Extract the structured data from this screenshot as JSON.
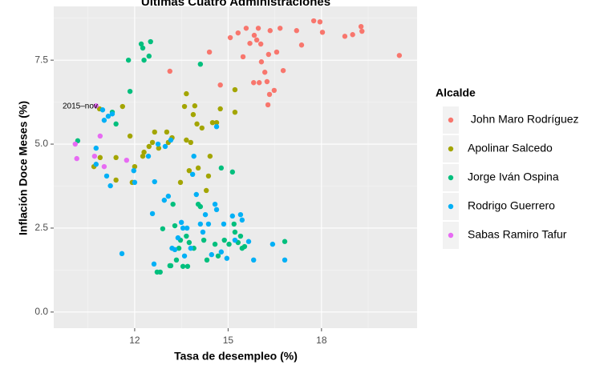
{
  "chart_data": {
    "type": "scatter",
    "title": "Últimas Cuatro Administraciones",
    "x_label": "Tasa de desempleo (%)",
    "y_label": "Inflación Doce Meses (%)",
    "annotation": "2015–nov",
    "legend_title": "Alcalde",
    "legend_position": "right",
    "grid": true,
    "xlim": [
      9.4,
      21.07
    ],
    "ylim": [
      -0.48,
      9.1
    ],
    "xticks": [
      12,
      15,
      18
    ],
    "yticks": [
      {
        "value": 0,
        "label": "0.0"
      },
      {
        "value": 2.5,
        "label": "2.5"
      },
      {
        "value": 5,
        "label": "5.0"
      },
      {
        "value": 7.5,
        "label": "7.5"
      }
    ],
    "series": [
      {
        "name": " John Maro Rodríguez",
        "color": "#F8766D",
        "x": [
          13.13,
          14.4,
          14.75,
          15.07,
          15.32,
          15.58,
          15.48,
          15.7,
          15.84,
          15.92,
          15.97,
          16.05,
          15.82,
          16.0,
          16.07,
          16.18,
          16.25,
          16.28,
          16.33,
          16.3,
          16.35,
          16.48,
          16.56,
          16.67,
          16.77,
          17.2,
          17.36,
          17.75,
          17.95,
          18.03,
          18.75,
          19.0,
          19.27,
          19.3,
          20.5
        ],
        "values": [
          7.17,
          7.74,
          6.76,
          8.17,
          8.31,
          8.45,
          7.6,
          8.0,
          8.24,
          8.1,
          8.45,
          7.98,
          6.83,
          6.83,
          7.45,
          7.14,
          6.86,
          6.17,
          6.48,
          7.67,
          8.38,
          6.6,
          7.74,
          8.45,
          7.19,
          8.38,
          7.95,
          8.67,
          8.64,
          8.33,
          8.21,
          8.26,
          8.5,
          8.36,
          7.64
        ]
      },
      {
        "name": "Apolinar Salcedo",
        "color": "#A3A500",
        "x": [
          10.69,
          10.89,
          10.87,
          11.4,
          11.61,
          11.85,
          11.92,
          12.0,
          12.26,
          12.3,
          12.46,
          12.57,
          12.64,
          12.77,
          13.03,
          13.08,
          13.2,
          13.47,
          13.6,
          13.66,
          13.66,
          13.75,
          13.8,
          13.88,
          13.93,
          14.0,
          14.04,
          14.16,
          14.3,
          14.37,
          14.42,
          14.5,
          14.63,
          14.75,
          15.22,
          15.22,
          11.4
        ],
        "values": [
          4.33,
          4.6,
          6.05,
          4.6,
          6.12,
          5.24,
          3.86,
          4.33,
          4.64,
          4.76,
          4.93,
          5.05,
          5.36,
          4.88,
          5.36,
          5.05,
          5.19,
          3.86,
          6.12,
          6.5,
          5.12,
          4.21,
          5.05,
          5.88,
          6.14,
          5.6,
          4.29,
          5.48,
          3.62,
          4.05,
          4.64,
          5.64,
          5.64,
          6.05,
          6.62,
          5.95,
          3.93
        ]
      },
      {
        "name": "Jorge Iván Ospina",
        "color": "#00BF7D",
        "x": [
          10.17,
          11.8,
          11.85,
          12.21,
          12.26,
          12.3,
          12.46,
          12.51,
          11.28,
          11.4,
          13.23,
          13.16,
          12.72,
          12.82,
          13.13,
          13.34,
          13.42,
          13.47,
          13.55,
          13.66,
          13.7,
          13.75,
          13.9,
          14.04,
          14.11,
          14.11,
          14.22,
          14.32,
          14.68,
          14.78,
          14.88,
          15.14,
          15.03,
          15.19,
          15.22,
          15.32,
          15.4,
          15.45,
          15.53,
          16.82,
          12.9,
          13.29,
          14.58
        ],
        "values": [
          5.1,
          7.5,
          6.57,
          7.98,
          7.86,
          7.5,
          7.62,
          8.05,
          5.95,
          5.6,
          3.21,
          1.38,
          1.19,
          1.19,
          1.38,
          1.55,
          1.9,
          2.14,
          1.36,
          2.26,
          1.36,
          2.07,
          1.9,
          3.21,
          3.14,
          7.38,
          2.14,
          1.55,
          1.67,
          4.29,
          2.14,
          4.17,
          2.02,
          2.62,
          2.38,
          2.07,
          2.26,
          1.9,
          1.95,
          2.1,
          2.48,
          2.57,
          2.02
        ]
      },
      {
        "name": "Rodrigo Guerrero",
        "color": "#00B0F6",
        "x": [
          10.76,
          10.76,
          10.97,
          11.02,
          11.1,
          11.15,
          11.22,
          11.28,
          11.59,
          11.97,
          12.0,
          12.44,
          12.57,
          12.62,
          12.64,
          12.75,
          12.95,
          12.98,
          13.08,
          13.16,
          13.2,
          13.29,
          13.39,
          13.5,
          13.55,
          13.6,
          13.68,
          13.8,
          13.86,
          13.9,
          13.98,
          14.11,
          14.19,
          14.27,
          14.37,
          14.47,
          14.58,
          14.63,
          14.78,
          14.86,
          14.96,
          15.14,
          15.22,
          15.4,
          15.45,
          15.66,
          15.82,
          16.43,
          16.82,
          14.63
        ],
        "values": [
          4.88,
          4.4,
          6.02,
          5.71,
          4.05,
          5.83,
          3.76,
          5.9,
          1.74,
          4.21,
          3.86,
          4.64,
          2.93,
          1.43,
          3.88,
          5.0,
          3.33,
          4.93,
          3.45,
          5.12,
          1.9,
          1.86,
          2.21,
          2.67,
          2.5,
          1.67,
          2.5,
          1.9,
          4.1,
          4.64,
          3.5,
          2.62,
          2.38,
          2.9,
          2.62,
          1.71,
          3.21,
          3.05,
          1.79,
          2.62,
          1.6,
          2.86,
          2.14,
          2.9,
          2.74,
          2.1,
          1.55,
          2.02,
          1.55,
          5.52
        ]
      },
      {
        "name": "Sabas Ramiro Tafur",
        "color": "#E76BF3",
        "x": [
          10.09,
          10.14,
          10.76,
          10.89,
          11.02,
          11.74,
          10.71
        ],
        "values": [
          5.0,
          4.57,
          6.14,
          5.24,
          4.33,
          4.52,
          4.64
        ]
      }
    ]
  }
}
